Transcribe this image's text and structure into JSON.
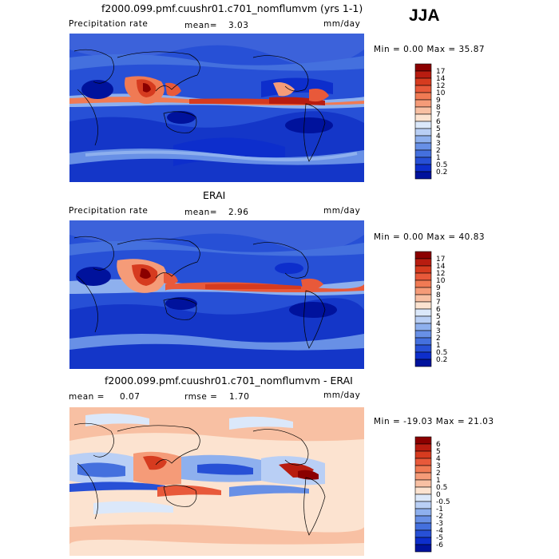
{
  "season": "JJA",
  "panels": [
    {
      "title": "f2000.099.pmf.cuushr01.c701_nomflumvm (yrs 1-1)",
      "variable": "Precipitation rate",
      "stat1_label": "mean=",
      "stat1_value": "3.03",
      "stat2_label": "",
      "stat2_value": "",
      "units": "mm/day",
      "minmax": "Min =   0.00 Max =  35.87",
      "colorbar": {
        "labels": [
          "17",
          "14",
          "12",
          "10",
          "9",
          "8",
          "7",
          "6",
          "5",
          "4",
          "3",
          "2",
          "1",
          "0.5",
          "0.2"
        ],
        "colors": [
          "#8b0000",
          "#b81c10",
          "#d63b1f",
          "#e8593a",
          "#f07a54",
          "#f59b78",
          "#f8c0a3",
          "#fce3d0",
          "#dbe8fa",
          "#b9cff5",
          "#8eb0ee",
          "#6890e6",
          "#4470de",
          "#2750d6",
          "#0d2ecc",
          "#00129c"
        ]
      }
    },
    {
      "title": "ERAI",
      "variable": "Precipitation rate",
      "stat1_label": "mean=",
      "stat1_value": "2.96",
      "stat2_label": "",
      "stat2_value": "",
      "units": "mm/day",
      "minmax": "Min =   0.00 Max =  40.83",
      "colorbar": {
        "labels": [
          "17",
          "14",
          "12",
          "10",
          "9",
          "8",
          "7",
          "6",
          "5",
          "4",
          "3",
          "2",
          "1",
          "0.5",
          "0.2"
        ],
        "colors": [
          "#8b0000",
          "#b81c10",
          "#d63b1f",
          "#e8593a",
          "#f07a54",
          "#f59b78",
          "#f8c0a3",
          "#fce3d0",
          "#dbe8fa",
          "#b9cff5",
          "#8eb0ee",
          "#6890e6",
          "#4470de",
          "#2750d6",
          "#0d2ecc",
          "#00129c"
        ]
      }
    },
    {
      "title": "f2000.099.pmf.cuushr01.c701_nomflumvm - ERAI",
      "variable": "",
      "stat1_label": "mean =",
      "stat1_value": "0.07",
      "stat2_label": "rmse =",
      "stat2_value": "1.70",
      "units": "mm/day",
      "minmax": "Min = -19.03 Max =  21.03",
      "colorbar": {
        "labels": [
          "6",
          "5",
          "4",
          "3",
          "2",
          "1",
          "0.5",
          "0",
          "-0.5",
          "-1",
          "-2",
          "-3",
          "-4",
          "-5",
          "-6"
        ],
        "colors": [
          "#8b0000",
          "#b81c10",
          "#d63b1f",
          "#e8593a",
          "#f07a54",
          "#f59b78",
          "#f8c0a3",
          "#fce3d0",
          "#dbe8fa",
          "#b9cff5",
          "#8eb0ee",
          "#6890e6",
          "#4470de",
          "#2750d6",
          "#0d2ecc",
          "#00129c"
        ]
      }
    }
  ]
}
